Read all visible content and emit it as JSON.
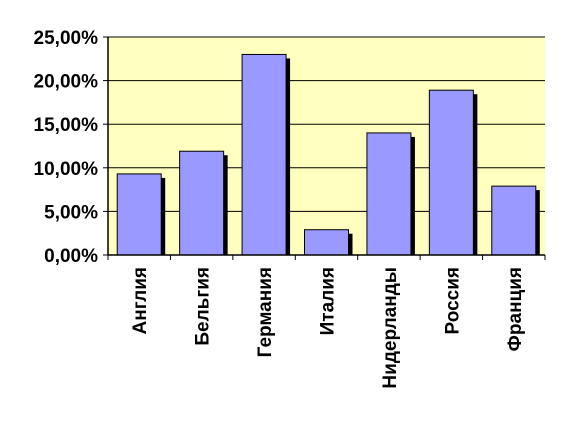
{
  "chart_data": {
    "type": "bar",
    "title": "",
    "xlabel": "",
    "ylabel": "",
    "categories": [
      "Англия",
      "Бельгия",
      "Германия",
      "Италия",
      "Нидерланды",
      "Россия",
      "Франция"
    ],
    "values": [
      9.3,
      11.9,
      23.0,
      2.9,
      14.0,
      18.9,
      7.9
    ],
    "ylim": [
      0,
      25
    ],
    "yticks": [
      0,
      5,
      10,
      15,
      20,
      25
    ],
    "ytick_labels": [
      "0,00%",
      "5,00%",
      "10,00%",
      "15,00%",
      "20,00%",
      "25,00%"
    ],
    "grid": true,
    "legend": "none",
    "colors": {
      "plot_background": "#FFFFC0",
      "bar_fill": "#9999FF",
      "bar_shadow": "#000000",
      "gridline": "#000000",
      "axis": "#000000"
    }
  }
}
